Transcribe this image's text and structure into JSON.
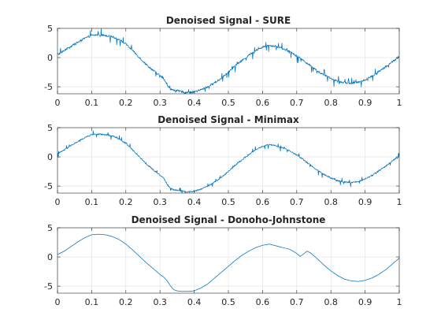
{
  "figure": {
    "background": "#ffffff"
  },
  "chart_data": [
    {
      "type": "line",
      "title": "Denoised Signal - SURE",
      "xlabel": "",
      "ylabel": "",
      "xlim": [
        0,
        1
      ],
      "ylim": [
        -6.2,
        5
      ],
      "xticks": [
        "0",
        "0.1",
        "0.2",
        "0.3",
        "0.4",
        "0.5",
        "0.6",
        "0.7",
        "0.8",
        "0.9",
        "1"
      ],
      "yticks": [
        "5",
        "0",
        "-5"
      ],
      "grid": true,
      "color": "#0072bd",
      "noise_level": "high",
      "series": [
        {
          "x": [
            0,
            0.02,
            0.05,
            0.08,
            0.1,
            0.12,
            0.14,
            0.16,
            0.18,
            0.2,
            0.22,
            0.24,
            0.26,
            0.28,
            0.3,
            0.31,
            0.32,
            0.33,
            0.34,
            0.36,
            0.38,
            0.4,
            0.42,
            0.44,
            0.46,
            0.48,
            0.5,
            0.52,
            0.54,
            0.56,
            0.58,
            0.6,
            0.62,
            0.64,
            0.66,
            0.68,
            0.7,
            0.72,
            0.74,
            0.76,
            0.78,
            0.8,
            0.82,
            0.84,
            0.86,
            0.88,
            0.9,
            0.92,
            0.94,
            0.96,
            0.98,
            1.0
          ],
          "y": [
            0.5,
            1.2,
            2.3,
            3.3,
            3.8,
            3.9,
            3.8,
            3.6,
            3.1,
            2.3,
            1.2,
            0.0,
            -1.2,
            -2.2,
            -3.1,
            -3.6,
            -4.6,
            -5.4,
            -5.6,
            -5.8,
            -6.0,
            -5.9,
            -5.5,
            -5.0,
            -4.3,
            -3.5,
            -2.5,
            -1.4,
            -0.5,
            0.4,
            1.2,
            1.8,
            2.1,
            1.9,
            1.5,
            1.0,
            0.3,
            -0.5,
            -1.4,
            -2.3,
            -3.0,
            -3.6,
            -4.1,
            -4.3,
            -4.4,
            -4.2,
            -3.8,
            -3.2,
            -2.4,
            -1.6,
            -0.7,
            0.2
          ]
        }
      ]
    },
    {
      "type": "line",
      "title": "Denoised Signal - Minimax",
      "xlabel": "",
      "ylabel": "",
      "xlim": [
        0,
        1
      ],
      "ylim": [
        -6.2,
        5
      ],
      "xticks": [
        "0",
        "0.1",
        "0.2",
        "0.3",
        "0.4",
        "0.5",
        "0.6",
        "0.7",
        "0.8",
        "0.9",
        "1"
      ],
      "yticks": [
        "5",
        "0",
        "-5"
      ],
      "grid": true,
      "color": "#0072bd",
      "noise_level": "medium",
      "series": [
        {
          "x": [
            0,
            0.02,
            0.05,
            0.08,
            0.1,
            0.12,
            0.14,
            0.16,
            0.18,
            0.2,
            0.22,
            0.24,
            0.26,
            0.28,
            0.3,
            0.31,
            0.32,
            0.33,
            0.34,
            0.36,
            0.38,
            0.4,
            0.42,
            0.44,
            0.46,
            0.48,
            0.5,
            0.52,
            0.54,
            0.56,
            0.58,
            0.6,
            0.62,
            0.64,
            0.66,
            0.68,
            0.7,
            0.72,
            0.74,
            0.76,
            0.78,
            0.8,
            0.82,
            0.84,
            0.86,
            0.88,
            0.9,
            0.92,
            0.94,
            0.96,
            0.98,
            1.0
          ],
          "y": [
            0.5,
            1.2,
            2.3,
            3.3,
            3.8,
            3.9,
            3.8,
            3.6,
            3.1,
            2.3,
            1.2,
            0.0,
            -1.2,
            -2.2,
            -3.1,
            -3.6,
            -4.6,
            -5.4,
            -5.6,
            -5.8,
            -6.0,
            -5.9,
            -5.5,
            -5.0,
            -4.3,
            -3.5,
            -2.5,
            -1.4,
            -0.5,
            0.4,
            1.2,
            1.8,
            2.1,
            1.9,
            1.5,
            1.0,
            0.3,
            -0.5,
            -1.4,
            -2.3,
            -3.0,
            -3.6,
            -4.1,
            -4.3,
            -4.4,
            -4.2,
            -3.8,
            -3.2,
            -2.4,
            -1.6,
            -0.7,
            0.2
          ]
        }
      ]
    },
    {
      "type": "line",
      "title": "Denoised Signal - Donoho-Johnstone",
      "xlabel": "",
      "ylabel": "",
      "xlim": [
        0,
        1
      ],
      "ylim": [
        -6.2,
        5
      ],
      "xticks": [
        "0",
        "0.1",
        "0.2",
        "0.3",
        "0.4",
        "0.5",
        "0.6",
        "0.7",
        "0.8",
        "0.9",
        "1"
      ],
      "yticks": [
        "5",
        "0",
        "-5"
      ],
      "grid": true,
      "color": "#0072bd",
      "noise_level": "none",
      "series": [
        {
          "x": [
            0,
            0.02,
            0.04,
            0.06,
            0.08,
            0.1,
            0.12,
            0.14,
            0.16,
            0.18,
            0.2,
            0.22,
            0.24,
            0.26,
            0.28,
            0.3,
            0.31,
            0.32,
            0.33,
            0.34,
            0.35,
            0.36,
            0.38,
            0.4,
            0.42,
            0.44,
            0.46,
            0.48,
            0.5,
            0.52,
            0.54,
            0.56,
            0.58,
            0.6,
            0.62,
            0.64,
            0.66,
            0.68,
            0.7,
            0.71,
            0.72,
            0.73,
            0.74,
            0.76,
            0.78,
            0.8,
            0.82,
            0.84,
            0.86,
            0.88,
            0.9,
            0.92,
            0.94,
            0.96,
            0.98,
            1.0
          ],
          "y": [
            0.4,
            1.0,
            1.8,
            2.6,
            3.3,
            3.8,
            3.9,
            3.8,
            3.5,
            3.0,
            2.2,
            1.2,
            0.1,
            -1.0,
            -2.0,
            -3.0,
            -3.4,
            -4.0,
            -4.9,
            -5.6,
            -5.8,
            -5.9,
            -5.9,
            -5.8,
            -5.3,
            -4.6,
            -3.6,
            -2.6,
            -1.6,
            -0.6,
            0.3,
            1.0,
            1.6,
            2.0,
            2.2,
            1.9,
            1.6,
            1.3,
            0.6,
            0.1,
            0.5,
            1.0,
            0.7,
            -0.3,
            -1.4,
            -2.4,
            -3.2,
            -3.8,
            -4.1,
            -4.2,
            -4.0,
            -3.6,
            -3.0,
            -2.2,
            -1.2,
            -0.2
          ]
        }
      ]
    }
  ]
}
